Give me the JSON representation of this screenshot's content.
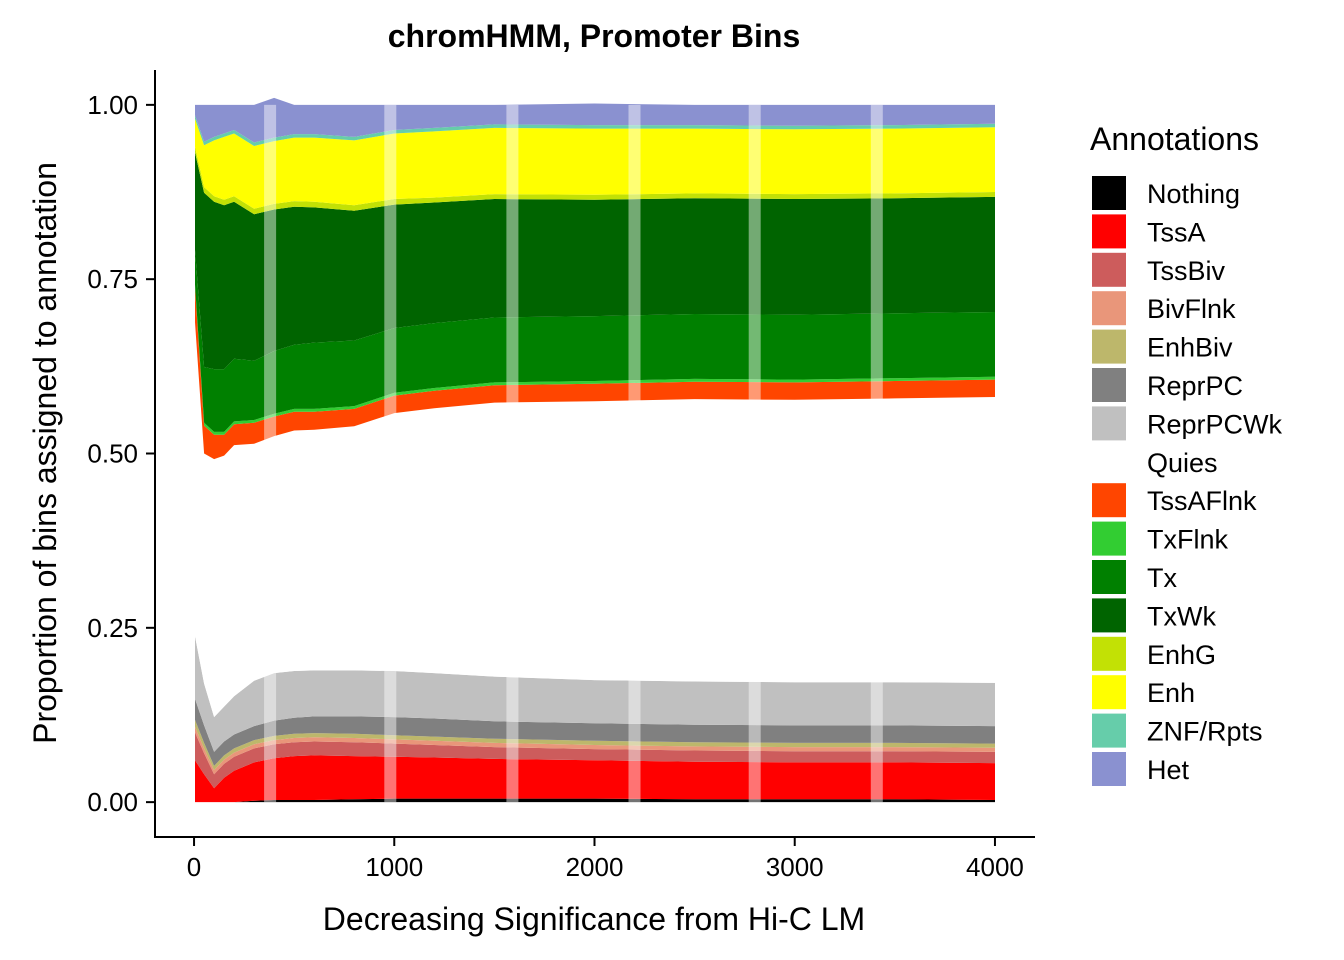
{
  "chart_data": {
    "type": "area",
    "title": "chromHMM, Promoter Bins",
    "xlabel": "Decreasing Significance from Hi-C LM",
    "ylabel": "Proportion of bins assigned to annotation",
    "xlim": [
      -195,
      4200
    ],
    "ylim": [
      -0.05,
      1.05
    ],
    "x_ticks": [
      0,
      1000,
      2000,
      3000,
      4000
    ],
    "y_ticks": [
      0.0,
      0.25,
      0.5,
      0.75,
      1.0
    ],
    "x_tick_labels": [
      "0",
      "1000",
      "2000",
      "3000",
      "4000"
    ],
    "y_tick_labels": [
      "0.00",
      "0.25",
      "0.50",
      "0.75",
      "1.00"
    ],
    "grid": false,
    "legend_title": "Annotations",
    "legend_position": "right",
    "x": [
      5,
      50,
      100,
      150,
      200,
      300,
      400,
      500,
      600,
      800,
      1000,
      1200,
      1500,
      2000,
      2500,
      3000,
      3500,
      4000
    ],
    "series": [
      {
        "name": "Nothing",
        "color": "#000000",
        "values": [
          0.0,
          0.0,
          0.0,
          0.0,
          0.0,
          0.002,
          0.003,
          0.003,
          0.003,
          0.004,
          0.005,
          0.005,
          0.005,
          0.005,
          0.004,
          0.004,
          0.004,
          0.003
        ]
      },
      {
        "name": "TssA",
        "color": "#FF0000",
        "values": [
          0.06,
          0.04,
          0.02,
          0.035,
          0.045,
          0.055,
          0.06,
          0.063,
          0.064,
          0.062,
          0.06,
          0.059,
          0.057,
          0.055,
          0.054,
          0.053,
          0.053,
          0.053
        ]
      },
      {
        "name": "TssBiv",
        "color": "#CD5C5C",
        "values": [
          0.04,
          0.03,
          0.02,
          0.02,
          0.02,
          0.02,
          0.02,
          0.02,
          0.02,
          0.02,
          0.019,
          0.018,
          0.017,
          0.016,
          0.016,
          0.016,
          0.016,
          0.016
        ]
      },
      {
        "name": "BivFlnk",
        "color": "#E9967A",
        "values": [
          0.008,
          0.007,
          0.006,
          0.006,
          0.006,
          0.006,
          0.006,
          0.006,
          0.006,
          0.006,
          0.006,
          0.006,
          0.006,
          0.006,
          0.006,
          0.006,
          0.006,
          0.006
        ]
      },
      {
        "name": "EnhBiv",
        "color": "#BDB76B",
        "values": [
          0.01,
          0.008,
          0.006,
          0.006,
          0.006,
          0.006,
          0.006,
          0.006,
          0.006,
          0.006,
          0.006,
          0.006,
          0.006,
          0.006,
          0.006,
          0.006,
          0.006,
          0.006
        ]
      },
      {
        "name": "ReprPC",
        "color": "#808080",
        "values": [
          0.03,
          0.025,
          0.02,
          0.02,
          0.02,
          0.02,
          0.022,
          0.023,
          0.024,
          0.025,
          0.026,
          0.026,
          0.025,
          0.025,
          0.025,
          0.025,
          0.025,
          0.025
        ]
      },
      {
        "name": "ReprPCWk",
        "color": "#C0C0C0",
        "values": [
          0.09,
          0.06,
          0.05,
          0.05,
          0.055,
          0.065,
          0.068,
          0.067,
          0.066,
          0.066,
          0.066,
          0.065,
          0.064,
          0.062,
          0.062,
          0.062,
          0.062,
          0.062
        ]
      },
      {
        "name": "Quies",
        "color": "#FFFFFF",
        "values": [
          0.45,
          0.33,
          0.37,
          0.36,
          0.36,
          0.34,
          0.34,
          0.345,
          0.345,
          0.35,
          0.37,
          0.38,
          0.393,
          0.4,
          0.405,
          0.405,
          0.407,
          0.41
        ]
      },
      {
        "name": "TssAFlnk",
        "color": "#FF4500",
        "values": [
          0.05,
          0.04,
          0.035,
          0.03,
          0.03,
          0.03,
          0.028,
          0.027,
          0.026,
          0.025,
          0.025,
          0.025,
          0.025,
          0.025,
          0.025,
          0.025,
          0.025,
          0.025
        ]
      },
      {
        "name": "TxFlnk",
        "color": "#32CD32",
        "values": [
          0.004,
          0.004,
          0.004,
          0.004,
          0.004,
          0.004,
          0.004,
          0.004,
          0.004,
          0.004,
          0.004,
          0.004,
          0.004,
          0.004,
          0.004,
          0.004,
          0.004,
          0.004
        ]
      },
      {
        "name": "Tx",
        "color": "#008000",
        "values": [
          0.05,
          0.08,
          0.09,
          0.09,
          0.09,
          0.085,
          0.09,
          0.092,
          0.095,
          0.094,
          0.093,
          0.093,
          0.093,
          0.093,
          0.093,
          0.093,
          0.093,
          0.093
        ]
      },
      {
        "name": "TxWk",
        "color": "#006400",
        "values": [
          0.14,
          0.25,
          0.24,
          0.235,
          0.225,
          0.21,
          0.203,
          0.198,
          0.194,
          0.186,
          0.177,
          0.173,
          0.17,
          0.167,
          0.166,
          0.166,
          0.165,
          0.165
        ]
      },
      {
        "name": "EnhG",
        "color": "#C2E105",
        "values": [
          0.008,
          0.008,
          0.008,
          0.008,
          0.008,
          0.008,
          0.008,
          0.008,
          0.008,
          0.008,
          0.008,
          0.007,
          0.007,
          0.007,
          0.007,
          0.007,
          0.007,
          0.007
        ]
      },
      {
        "name": "Enh",
        "color": "#FFFF00",
        "values": [
          0.04,
          0.06,
          0.08,
          0.09,
          0.09,
          0.09,
          0.09,
          0.091,
          0.092,
          0.093,
          0.094,
          0.095,
          0.095,
          0.095,
          0.093,
          0.093,
          0.093,
          0.093
        ]
      },
      {
        "name": "ZNF/Rpts",
        "color": "#66CDAA",
        "values": [
          0.005,
          0.005,
          0.005,
          0.005,
          0.005,
          0.005,
          0.005,
          0.005,
          0.005,
          0.005,
          0.005,
          0.005,
          0.005,
          0.005,
          0.005,
          0.005,
          0.005,
          0.005
        ]
      },
      {
        "name": "Het",
        "color": "#8A91D0",
        "values": [
          0.015,
          0.053,
          0.046,
          0.041,
          0.036,
          0.054,
          0.057,
          0.042,
          0.042,
          0.046,
          0.036,
          0.033,
          0.028,
          0.031,
          0.029,
          0.03,
          0.029,
          0.027
        ]
      }
    ],
    "highlight_bands_x": [
      380,
      980,
      1590,
      2200,
      2800,
      3410
    ]
  }
}
